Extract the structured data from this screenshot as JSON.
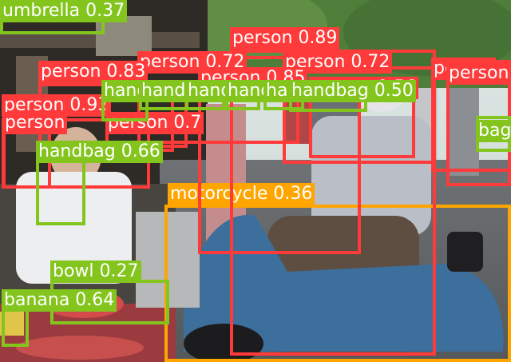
{
  "colors": {
    "person": "#ff3a3a",
    "handbag": "#84c51d",
    "umbrella": "#84c51d",
    "bowl": "#84c51d",
    "banana": "#84c51d",
    "motorcycle": "#ffa500"
  },
  "detections": [
    {
      "class": "motorcycle",
      "label": "motorcycle 0.36"
    },
    {
      "class": "person",
      "label": "person 0.89"
    },
    {
      "class": "person",
      "label": "person 0.72"
    },
    {
      "class": "person",
      "label": "person 0.72"
    },
    {
      "class": "person",
      "label": "person 0.83"
    },
    {
      "class": "person",
      "label": "person 0.85"
    },
    {
      "class": "person",
      "label": "person 0.93"
    },
    {
      "class": "person",
      "label": "person"
    },
    {
      "class": "person",
      "label": "person 0.7"
    },
    {
      "class": "person",
      "label": "person"
    },
    {
      "class": "person",
      "label": "person"
    },
    {
      "class": "person",
      "label": "person 0.56"
    },
    {
      "class": "umbrella",
      "label": "umbrella 0.37"
    },
    {
      "class": "handbag",
      "label": "handbag 0.66"
    },
    {
      "class": "handbag",
      "label": "handbag"
    },
    {
      "class": "handbag",
      "label": "handbag"
    },
    {
      "class": "handbag",
      "label": "handbag"
    },
    {
      "class": "handbag",
      "label": "handbag"
    },
    {
      "class": "handbag",
      "label": "handbag"
    },
    {
      "class": "handbag",
      "label": "handbag 0.50"
    },
    {
      "class": "handbag",
      "label": "bag"
    },
    {
      "class": "bowl",
      "label": "bowl 0.27"
    },
    {
      "class": "banana",
      "label": "banana 0.64"
    }
  ]
}
